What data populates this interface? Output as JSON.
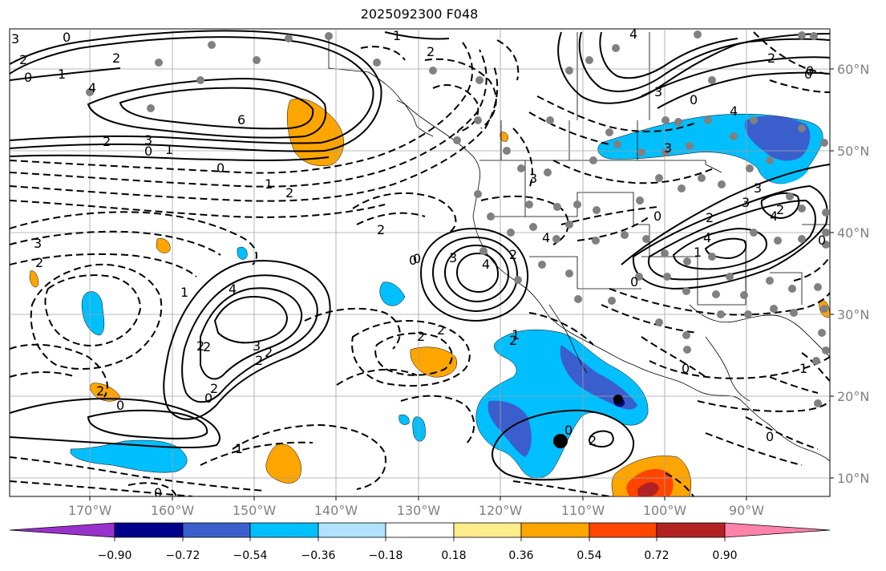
{
  "title": "2025092300 F048",
  "lat_labels": [
    "60°N",
    "50°N",
    "40°N",
    "30°N",
    "20°N",
    "10°N"
  ],
  "lon_labels": [
    "170°W",
    "160°W",
    "150°W",
    "140°W",
    "130°W",
    "120°W",
    "110°W",
    "100°W",
    "90°W"
  ],
  "colorbar": {
    "ticks": [
      "−0.90",
      "−0.72",
      "−0.54",
      "−0.36",
      "−0.18",
      "0.18",
      "0.36",
      "0.54",
      "0.72",
      "0.90"
    ],
    "colors": [
      "#9932cc",
      "#00008b",
      "#3a5fcd",
      "#00bfff",
      "#b0e2ff",
      "#ffffff",
      "#ffec8b",
      "#ffa500",
      "#ff4500",
      "#b22222",
      "#ff82ab"
    ]
  },
  "contour_labels": [
    "3",
    "2",
    "0",
    "1",
    "2",
    "6",
    "3",
    "2",
    "0",
    "1",
    "0",
    "1",
    "2",
    "4",
    "3",
    "2",
    "1",
    "3",
    "4",
    "2",
    "2",
    "0",
    "2",
    "1",
    "2",
    "0",
    "3",
    "4",
    "2",
    "0",
    "2",
    "2",
    "4",
    "3",
    "2",
    "0",
    "0",
    "0",
    "3",
    "4",
    "4",
    "3",
    "0",
    "2",
    "0",
    "4",
    "3",
    "2",
    "0",
    "1",
    "0",
    "2",
    "0",
    "2",
    "4",
    "3",
    "1",
    "2",
    "2",
    "0",
    "0",
    "0",
    "2",
    "1",
    "2",
    "0",
    "1"
  ],
  "colors": {
    "grid": "#a0a0a0",
    "axis_label": "#808080",
    "dot": "#808080",
    "marker": "#000000"
  }
}
